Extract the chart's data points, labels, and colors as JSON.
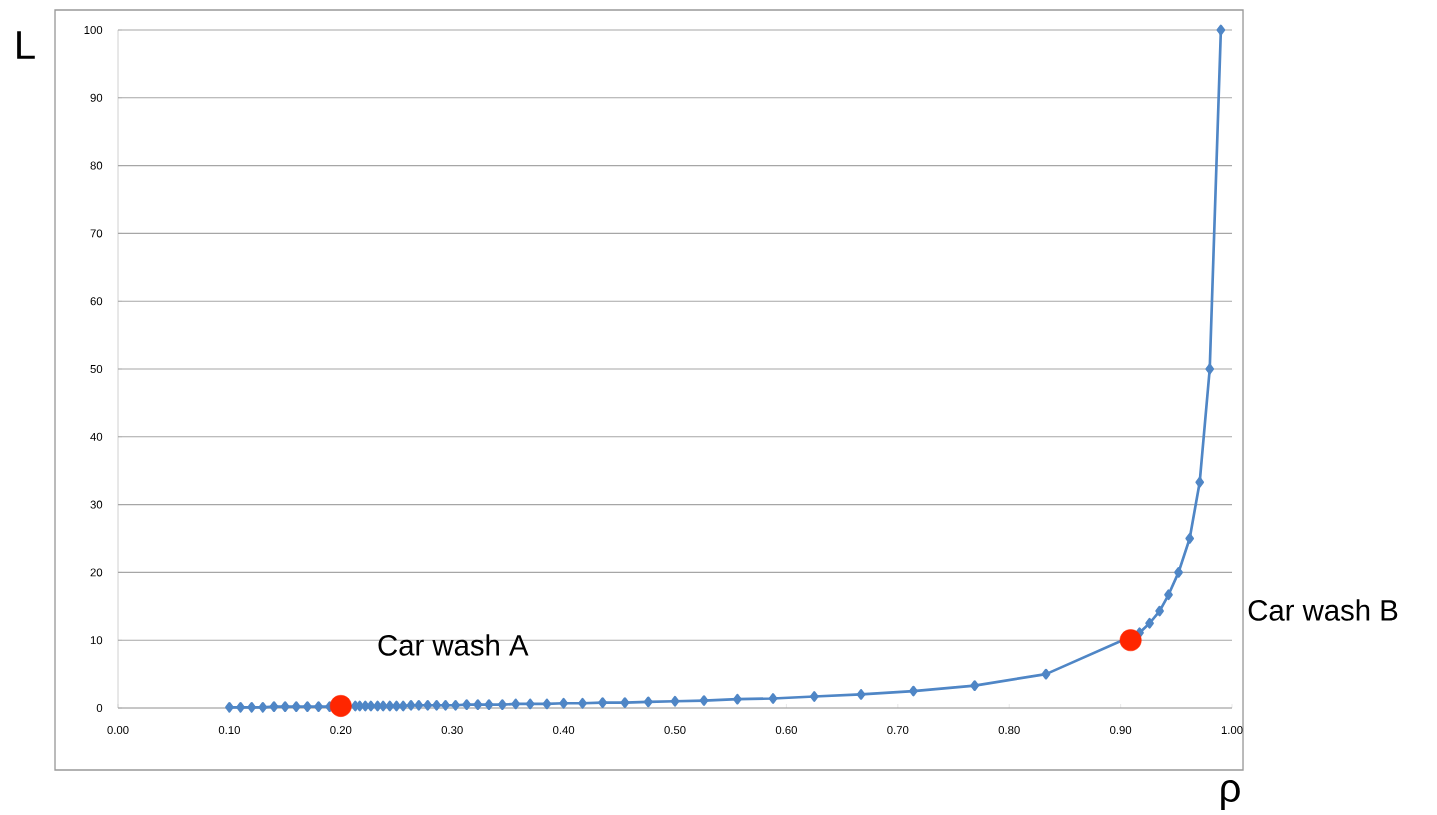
{
  "chart_data": {
    "type": "line",
    "xlabel": "ρ",
    "ylabel": "L",
    "xlim": [
      0,
      1
    ],
    "ylim": [
      0,
      100
    ],
    "xticks": [
      {
        "value": 0,
        "label": "0.00"
      },
      {
        "value": 0.1,
        "label": "0.10"
      },
      {
        "value": 0.2,
        "label": "0.20"
      },
      {
        "value": 0.3,
        "label": "0.30"
      },
      {
        "value": 0.4,
        "label": "0.40"
      },
      {
        "value": 0.5,
        "label": "0.50"
      },
      {
        "value": 0.6,
        "label": "0.60"
      },
      {
        "value": 0.7,
        "label": "0.70"
      },
      {
        "value": 0.8,
        "label": "0.80"
      },
      {
        "value": 0.9,
        "label": "0.90"
      },
      {
        "value": 1,
        "label": "1.00"
      }
    ],
    "yticks": [
      0,
      10,
      20,
      30,
      40,
      50,
      60,
      70,
      80,
      90,
      100
    ],
    "grid": "y",
    "series": [
      {
        "color": "#4f86c6",
        "marker": "diamond",
        "line_style": "solid",
        "x": [
          0.1,
          0.11,
          0.12,
          0.13,
          0.14,
          0.15,
          0.16,
          0.17,
          0.18,
          0.19,
          0.2,
          0.204,
          0.208,
          0.213,
          0.217,
          0.222,
          0.227,
          0.233,
          0.238,
          0.244,
          0.25,
          0.256,
          0.263,
          0.27,
          0.278,
          0.286,
          0.294,
          0.303,
          0.313,
          0.323,
          0.333,
          0.345,
          0.357,
          0.37,
          0.385,
          0.4,
          0.417,
          0.435,
          0.455,
          0.476,
          0.5,
          0.526,
          0.556,
          0.588,
          0.625,
          0.667,
          0.714,
          0.769,
          0.833,
          0.909,
          0.917,
          0.926,
          0.935,
          0.943,
          0.952,
          0.962,
          0.971,
          0.98,
          0.99
        ],
        "values": [
          0.1,
          0.1,
          0.1,
          0.1,
          0.2,
          0.2,
          0.2,
          0.2,
          0.2,
          0.2,
          null,
          null,
          null,
          0.3,
          0.3,
          0.3,
          0.3,
          0.3,
          0.3,
          0.3,
          0.3,
          0.3,
          0.4,
          0.4,
          0.4,
          0.4,
          0.4,
          0.4,
          0.5,
          0.5,
          0.5,
          0.5,
          0.6,
          0.6,
          0.6,
          0.7,
          0.7,
          0.8,
          0.8,
          0.9,
          1,
          1.1,
          1.3,
          1.4,
          1.7,
          2,
          2.5,
          3.3,
          5,
          null,
          11.1,
          12.5,
          14.3,
          16.7,
          20,
          25,
          33.3,
          50,
          100
        ]
      },
      {
        "type": "scatter",
        "color": "#ff2600",
        "marker": "circle",
        "x": [
          0.2,
          0.909
        ],
        "values": [
          0.3,
          10
        ]
      }
    ],
    "annotations": [
      {
        "text": "Car wash A",
        "x": 0.2,
        "y": 0.3
      },
      "Car wash B"
    ]
  }
}
